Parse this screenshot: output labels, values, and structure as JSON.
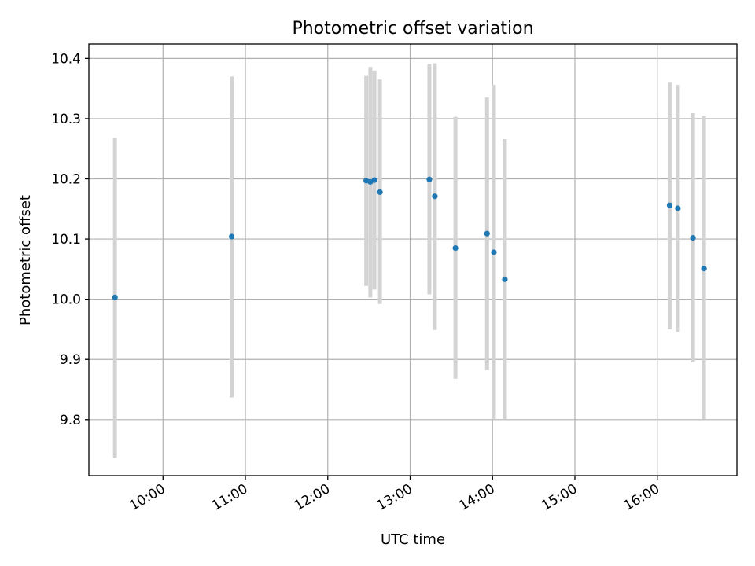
{
  "chart_data": {
    "type": "scatter",
    "title": "Photometric offset variation",
    "xlabel": "UTC time",
    "ylabel": "Photometric offset",
    "x_axis": "time",
    "xlim": [
      "09:06",
      "16:58"
    ],
    "ylim": [
      9.707,
      10.424
    ],
    "x_ticks": [
      "10:00",
      "11:00",
      "12:00",
      "13:00",
      "14:00",
      "15:00",
      "16:00"
    ],
    "y_ticks": [
      9.8,
      9.9,
      10.0,
      10.1,
      10.2,
      10.3,
      10.4
    ],
    "y_tick_labels": [
      "9.8",
      "9.9",
      "10.0",
      "10.1",
      "10.2",
      "10.3",
      "10.4"
    ],
    "grid": true,
    "colors": {
      "point": "#1f77b4",
      "errorbar": "#d3d3d3",
      "grid": "#b0b0b0"
    },
    "series": [
      {
        "points": [
          {
            "x": "09:25",
            "y": 10.003,
            "ylow": 9.737,
            "yhigh": 10.268
          },
          {
            "x": "10:50",
            "y": 10.104,
            "ylow": 9.837,
            "yhigh": 10.37
          },
          {
            "x": "12:28",
            "y": 10.197,
            "ylow": 10.022,
            "yhigh": 10.371
          },
          {
            "x": "12:31",
            "y": 10.195,
            "ylow": 10.003,
            "yhigh": 10.386
          },
          {
            "x": "12:34",
            "y": 10.198,
            "ylow": 10.016,
            "yhigh": 10.38
          },
          {
            "x": "12:38",
            "y": 10.178,
            "ylow": 9.992,
            "yhigh": 10.365
          },
          {
            "x": "13:14",
            "y": 10.199,
            "ylow": 10.008,
            "yhigh": 10.39
          },
          {
            "x": "13:18",
            "y": 10.171,
            "ylow": 9.949,
            "yhigh": 10.392
          },
          {
            "x": "13:33",
            "y": 10.085,
            "ylow": 9.868,
            "yhigh": 10.303
          },
          {
            "x": "13:56",
            "y": 10.109,
            "ylow": 9.882,
            "yhigh": 10.335
          },
          {
            "x": "14:01",
            "y": 10.078,
            "ylow": 9.8,
            "yhigh": 10.356
          },
          {
            "x": "14:09",
            "y": 10.033,
            "ylow": 9.8,
            "yhigh": 10.266
          },
          {
            "x": "16:09",
            "y": 10.156,
            "ylow": 9.95,
            "yhigh": 10.361
          },
          {
            "x": "16:15",
            "y": 10.151,
            "ylow": 9.946,
            "yhigh": 10.356
          },
          {
            "x": "16:26",
            "y": 10.102,
            "ylow": 9.895,
            "yhigh": 10.309
          },
          {
            "x": "16:34",
            "y": 10.051,
            "ylow": 9.801,
            "yhigh": 10.304
          }
        ]
      }
    ]
  }
}
